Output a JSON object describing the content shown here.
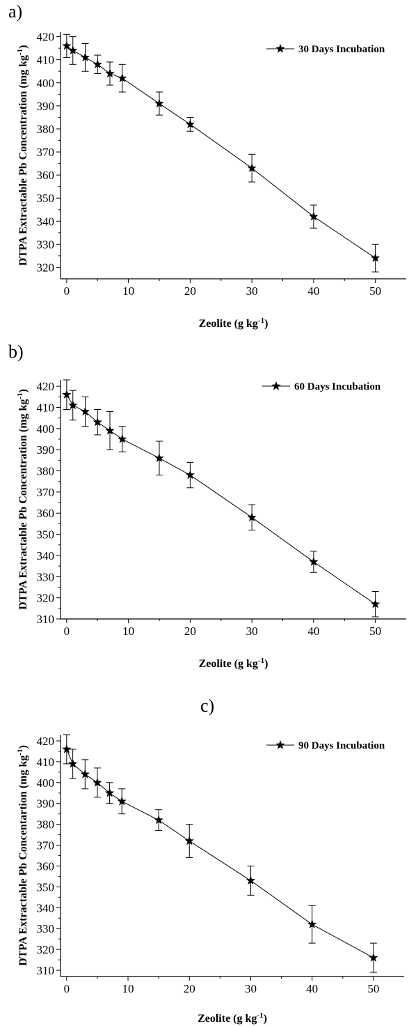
{
  "panels": [
    {
      "letter": "a)"
    },
    {
      "letter": "b)"
    },
    {
      "letter": "c)"
    }
  ],
  "chart_data": [
    {
      "type": "line",
      "title": "",
      "xlabel": "Zeolite (g kg-1)",
      "xlabel_parts": {
        "text": "Zeolite (g kg",
        "sup": "-1",
        "close": ")"
      },
      "ylabel": "DTPA Extractable Pb Concentration (mg kg-1)",
      "ylabel_parts": {
        "text": "DTPA Extractable Pb Concentration (mg kg",
        "sup": "-1",
        "close": ")"
      },
      "xlim": [
        -1,
        55
      ],
      "ylim": [
        315,
        422
      ],
      "xticks": [
        0,
        10,
        20,
        30,
        40,
        50
      ],
      "yticks": [
        320,
        330,
        340,
        350,
        360,
        370,
        380,
        390,
        400,
        410,
        420
      ],
      "legend_position": "top-right",
      "marker": "star",
      "series": [
        {
          "name": "30 Days Incubation",
          "x": [
            0,
            1,
            3,
            5,
            7,
            9,
            15,
            20,
            30,
            40,
            50
          ],
          "y": [
            416,
            414,
            411,
            408,
            404,
            402,
            391,
            382,
            363,
            342,
            324
          ],
          "error": [
            5,
            6,
            6,
            4,
            5,
            6,
            5,
            3,
            6,
            5,
            6
          ]
        }
      ]
    },
    {
      "type": "line",
      "title": "",
      "xlabel": "Zeolite (g kg-1)",
      "xlabel_parts": {
        "text": "Zeolite (g kg",
        "sup": "-1",
        "close": ")"
      },
      "ylabel": "DTPA Extractable Pb Concentration (mg kg-1)",
      "ylabel_parts": {
        "text": "DTPA Extractable Pb Concentration (mg kg",
        "sup": "-1",
        "close": ")"
      },
      "xlim": [
        -1,
        55
      ],
      "ylim": [
        310,
        423
      ],
      "xticks": [
        0,
        10,
        20,
        30,
        40,
        50
      ],
      "yticks": [
        310,
        320,
        330,
        340,
        350,
        360,
        370,
        380,
        390,
        400,
        410,
        420
      ],
      "legend_position": "top-right",
      "marker": "star",
      "series": [
        {
          "name": "60 Days Incubation",
          "x": [
            0,
            1,
            3,
            5,
            7,
            9,
            15,
            20,
            30,
            40,
            50
          ],
          "y": [
            416,
            411,
            408,
            403,
            399,
            395,
            386,
            378,
            358,
            337,
            317
          ],
          "error": [
            7,
            7,
            7,
            6,
            9,
            6,
            8,
            6,
            6,
            5,
            6
          ]
        }
      ]
    },
    {
      "type": "line",
      "title": "",
      "xlabel": "Zeolite (g kg-1)",
      "xlabel_parts": {
        "text": "Zeolite (g kg",
        "sup": "-1",
        "close": ")"
      },
      "ylabel": "DTPA Extractable Pb Concentartion (mg kg-1)",
      "ylabel_parts": {
        "text": "DTPA Extractable Pb Concentartion (mg kg",
        "sup": "-1",
        "close": ")"
      },
      "xlim": [
        -1,
        55
      ],
      "ylim": [
        307,
        423
      ],
      "xticks": [
        0,
        10,
        20,
        30,
        40,
        50
      ],
      "yticks": [
        310,
        320,
        330,
        340,
        350,
        360,
        370,
        380,
        390,
        400,
        410,
        420
      ],
      "legend_position": "top-right",
      "marker": "star",
      "series": [
        {
          "name": "90 Days Incubation",
          "x": [
            0,
            1,
            3,
            5,
            7,
            9,
            15,
            20,
            30,
            40,
            50
          ],
          "y": [
            416,
            409,
            404,
            400,
            395,
            391,
            382,
            372,
            353,
            332,
            316
          ],
          "error": [
            7,
            7,
            7,
            7,
            5,
            6,
            5,
            8,
            7,
            9,
            7
          ]
        }
      ]
    }
  ]
}
